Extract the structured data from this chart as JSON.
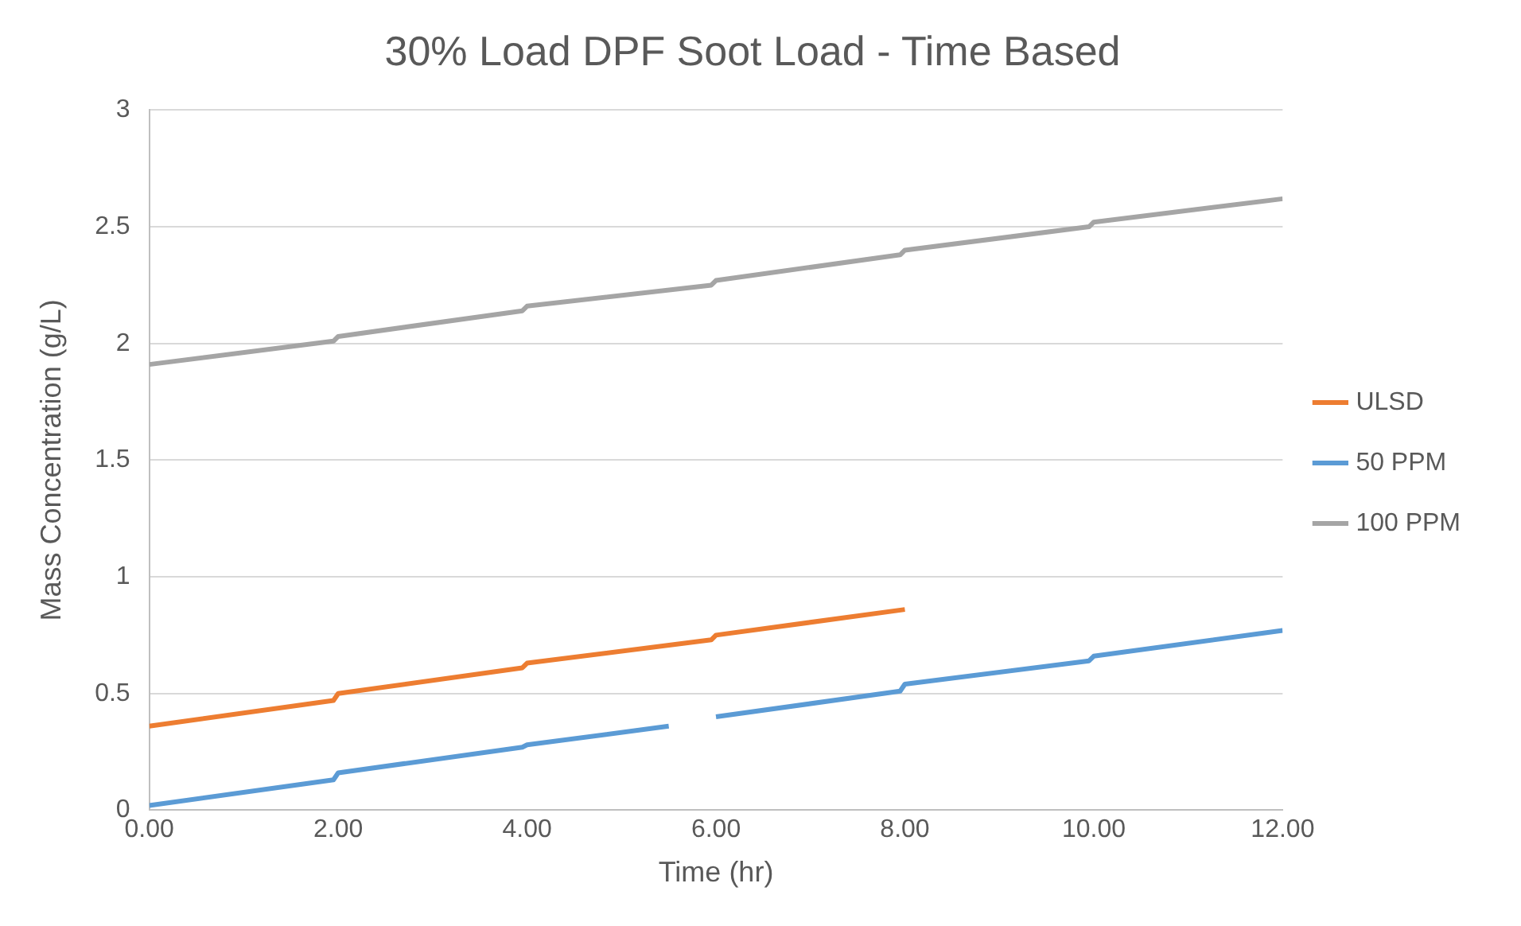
{
  "chart_data": {
    "type": "line",
    "title": "30% Load DPF Soot Load - Time Based",
    "xlabel": "Time (hr)",
    "ylabel": "Mass Concentration (g/L)",
    "xlim": [
      0,
      12
    ],
    "xticks": [
      {
        "value": 0,
        "label": "0.00"
      },
      {
        "value": 2,
        "label": "2.00"
      },
      {
        "value": 4,
        "label": "4.00"
      },
      {
        "value": 6,
        "label": "6.00"
      },
      {
        "value": 8,
        "label": "8.00"
      },
      {
        "value": 10,
        "label": "10.00"
      },
      {
        "value": 12,
        "label": "12.00"
      }
    ],
    "ylim": [
      0,
      3
    ],
    "yticks": [
      0,
      0.5,
      1,
      1.5,
      2,
      2.5,
      3
    ],
    "grid": "y",
    "legend": "right",
    "marker": "none",
    "line_style": "solid",
    "series": [
      {
        "name": "ULSD",
        "color": "#ed7d31",
        "x": [
          0,
          1.95,
          2,
          3.95,
          4,
          5.95,
          6,
          8
        ],
        "values": [
          0.36,
          0.47,
          0.5,
          0.61,
          0.63,
          0.73,
          0.75,
          0.86
        ]
      },
      {
        "name": "50 PPM",
        "color": "#5b9bd5",
        "x": [
          0,
          1.95,
          2,
          3.95,
          4,
          5.5,
          5.75,
          6,
          7.95,
          8,
          9.95,
          10,
          12
        ],
        "values": [
          0.02,
          0.13,
          0.16,
          0.27,
          0.28,
          0.36,
          null,
          0.4,
          0.51,
          0.54,
          0.64,
          0.66,
          0.77
        ]
      },
      {
        "name": "100 PPM",
        "color": "#a5a5a5",
        "x": [
          0,
          1.95,
          2,
          3.95,
          4,
          5.95,
          6,
          7.95,
          8,
          9.95,
          10,
          12
        ],
        "values": [
          1.91,
          2.01,
          2.03,
          2.14,
          2.16,
          2.25,
          2.27,
          2.38,
          2.4,
          2.5,
          2.52,
          2.62
        ]
      }
    ]
  }
}
